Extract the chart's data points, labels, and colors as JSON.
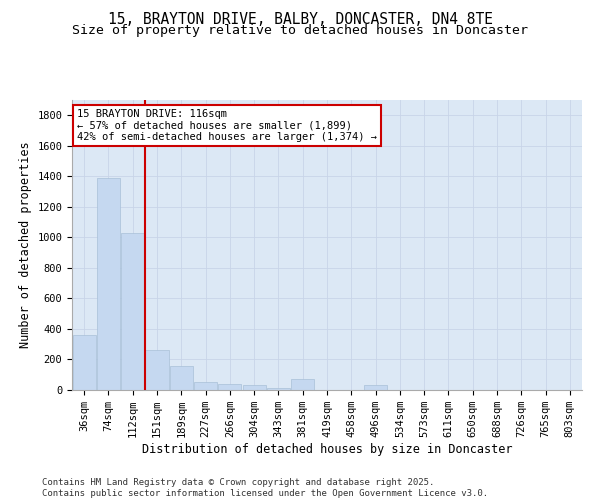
{
  "title_line1": "15, BRAYTON DRIVE, BALBY, DONCASTER, DN4 8TE",
  "title_line2": "Size of property relative to detached houses in Doncaster",
  "xlabel": "Distribution of detached houses by size in Doncaster",
  "ylabel": "Number of detached properties",
  "categories": [
    "36sqm",
    "74sqm",
    "112sqm",
    "151sqm",
    "189sqm",
    "227sqm",
    "266sqm",
    "304sqm",
    "343sqm",
    "381sqm",
    "419sqm",
    "458sqm",
    "496sqm",
    "534sqm",
    "573sqm",
    "611sqm",
    "650sqm",
    "688sqm",
    "726sqm",
    "765sqm",
    "803sqm"
  ],
  "values": [
    360,
    1390,
    1030,
    265,
    155,
    50,
    42,
    30,
    15,
    70,
    0,
    0,
    35,
    0,
    0,
    0,
    0,
    0,
    0,
    0,
    0
  ],
  "bar_color": "#c5d8f0",
  "bar_edge_color": "#a8c0d8",
  "vline_color": "#cc0000",
  "vline_index": 2,
  "annotation_box_text": "15 BRAYTON DRIVE: 116sqm\n← 57% of detached houses are smaller (1,899)\n42% of semi-detached houses are larger (1,374) →",
  "annotation_box_color": "#cc0000",
  "annotation_box_bg": "#ffffff",
  "ylim": [
    0,
    1900
  ],
  "yticks": [
    0,
    200,
    400,
    600,
    800,
    1000,
    1200,
    1400,
    1600,
    1800
  ],
  "grid_color": "#c8d4e8",
  "bg_color": "#dce8f5",
  "footer_text": "Contains HM Land Registry data © Crown copyright and database right 2025.\nContains public sector information licensed under the Open Government Licence v3.0.",
  "title_fontsize": 10.5,
  "subtitle_fontsize": 9.5,
  "axis_label_fontsize": 8.5,
  "tick_fontsize": 7.5,
  "annotation_fontsize": 7.5,
  "footer_fontsize": 6.5
}
